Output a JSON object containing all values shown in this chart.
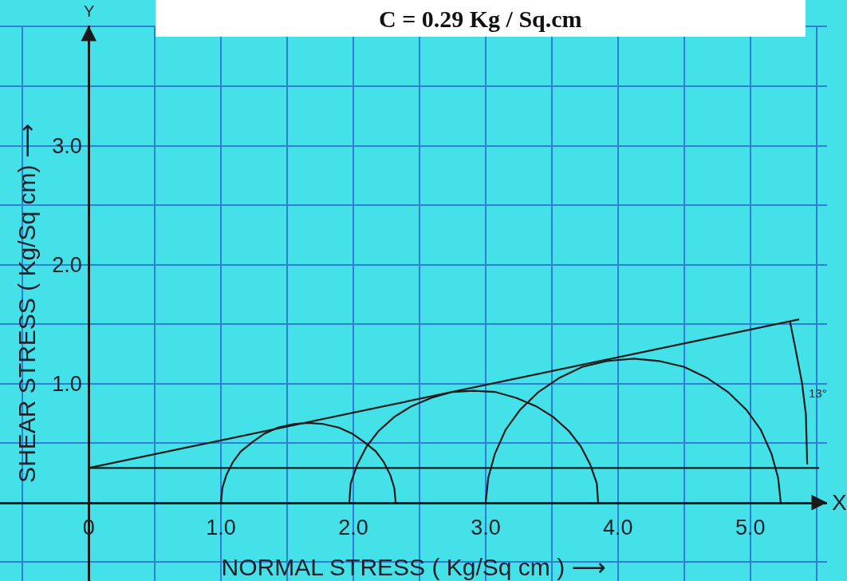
{
  "chart_data": {
    "type": "line",
    "title": "C = 0.29 Kg / Sq.cm",
    "xlabel": "NORMAL STRESS ( Kg/Sq cm ) ⟶",
    "ylabel": "SHEAR STRESS ( Kg/Sq cm) ⟶",
    "xlim": [
      -0.67,
      5.58
    ],
    "ylim": [
      -0.66,
      4.01
    ],
    "xticks": [
      {
        "value": -0.5,
        "label": null
      },
      0,
      {
        "value": 0.5,
        "label": null
      },
      {
        "value": 1,
        "label": "1.0"
      },
      {
        "value": 1.5,
        "label": null
      },
      {
        "value": 2,
        "label": "2.0"
      },
      {
        "value": 2.5,
        "label": null
      },
      {
        "value": 3,
        "label": "3.0"
      },
      {
        "value": 3.5,
        "label": null
      },
      {
        "value": 4,
        "label": "4.0"
      },
      {
        "value": 4.5,
        "label": null
      },
      {
        "value": 5,
        "label": "5.0"
      },
      {
        "value": 5.5,
        "label": null
      }
    ],
    "yticks": [
      {
        "value": -0.5,
        "label": null
      },
      {
        "value": 0,
        "label": null
      },
      {
        "value": 0.5,
        "label": null
      },
      {
        "value": 1,
        "label": "1.0"
      },
      {
        "value": 1.5,
        "label": null
      },
      {
        "value": 2,
        "label": "2.0"
      },
      {
        "value": 2.5,
        "label": null
      },
      {
        "value": 3,
        "label": "3.0"
      },
      {
        "value": 3.5,
        "label": null
      },
      {
        "value": 4,
        "label": null
      }
    ],
    "grid": true,
    "series": [
      {
        "color": "#1a1a1a",
        "x": [
          1.0,
          1.01,
          1.04,
          1.09,
          1.15,
          1.24,
          1.33,
          1.43,
          1.55,
          1.66,
          1.77,
          1.89,
          1.99,
          2.08,
          2.17,
          2.23,
          2.28,
          2.31,
          2.32
        ],
        "values": [
          0,
          0.12,
          0.23,
          0.34,
          0.43,
          0.51,
          0.58,
          0.63,
          0.66,
          0.67,
          0.66,
          0.63,
          0.58,
          0.51,
          0.43,
          0.34,
          0.23,
          0.12,
          0
        ]
      },
      {
        "color": "#1a1a1a",
        "x": [
          1.97,
          1.98,
          2.03,
          2.1,
          2.19,
          2.31,
          2.44,
          2.59,
          2.75,
          2.91,
          3.07,
          3.23,
          3.38,
          3.51,
          3.63,
          3.72,
          3.79,
          3.84,
          3.85
        ],
        "values": [
          0,
          0.16,
          0.32,
          0.47,
          0.6,
          0.72,
          0.81,
          0.88,
          0.93,
          0.94,
          0.93,
          0.88,
          0.81,
          0.72,
          0.6,
          0.47,
          0.32,
          0.16,
          0
        ]
      },
      {
        "color": "#1a1a1a",
        "x": [
          3.0,
          3.02,
          3.07,
          3.15,
          3.26,
          3.4,
          3.56,
          3.73,
          3.92,
          4.12,
          4.31,
          4.5,
          4.67,
          4.83,
          4.97,
          5.08,
          5.16,
          5.21,
          5.23
        ],
        "values": [
          0,
          0.21,
          0.41,
          0.61,
          0.78,
          0.93,
          1.05,
          1.14,
          1.19,
          1.21,
          1.19,
          1.14,
          1.05,
          0.93,
          0.78,
          0.61,
          0.41,
          0.21,
          0
        ]
      },
      {
        "color": "#1a1a1a",
        "x": [
          0,
          5.37
        ],
        "values": [
          0.29,
          1.54
        ]
      },
      {
        "color": "#1a1a1a",
        "x": [
          0,
          5.52
        ],
        "values": [
          0.29,
          0.29
        ]
      },
      {
        "color": "#1a1a1a",
        "x": [
          5.3,
          5.34,
          5.39,
          5.42,
          5.43
        ],
        "values": [
          1.52,
          1.3,
          1.01,
          0.74,
          0.32
        ]
      }
    ],
    "annotations": [
      "X",
      "Y",
      {
        "text": "13°",
        "x": 5.4,
        "y": 0.92
      }
    ]
  }
}
